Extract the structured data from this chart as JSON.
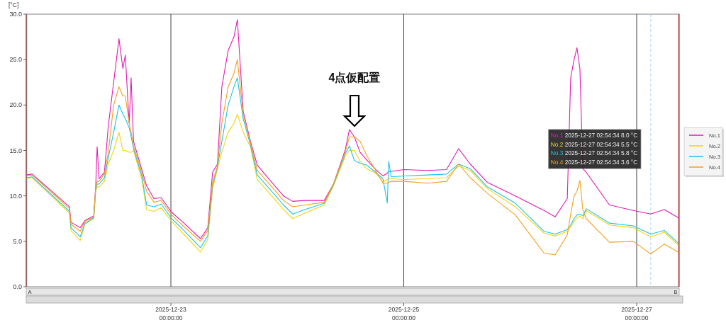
{
  "chart_data": {
    "type": "line",
    "ylabel": "[°C]",
    "xlim": [
      "2025-12-21T18:11",
      "2025-12-27T08:46"
    ],
    "xticks": [
      {
        "value": "2025-12-23",
        "label": "2025-12-23 00:00:00"
      },
      {
        "value": "2025-12-25",
        "label": "2025-12-25 00:00:00"
      },
      {
        "value": "2025-12-27",
        "label": "2025-12-27 00:00:00"
      }
    ],
    "ylim": [
      0,
      30
    ],
    "yticks": [
      {
        "value": 0,
        "label": "0.0"
      },
      {
        "value": 5,
        "label": "5.0"
      },
      {
        "value": 10,
        "label": "10.0"
      },
      {
        "value": 15,
        "label": "15.0"
      },
      {
        "value": 20,
        "label": "20.0"
      },
      {
        "value": 25,
        "label": "25.0"
      },
      {
        "value": 30,
        "label": "30.0"
      }
    ],
    "grid": "x",
    "legend": "right",
    "marker": "none",
    "line_style": "solid",
    "x": [
      "2025-12-21T18:11",
      "2025-12-21T19:24",
      "2025-12-22T03:06",
      "2025-12-22T03:24",
      "2025-12-22T05:18",
      "2025-12-22T06:18",
      "2025-12-22T08:06",
      "2025-12-22T08:30",
      "2025-12-22T08:48",
      "2025-12-22T09:12",
      "2025-12-22T10:18",
      "2025-12-22T11:06",
      "2025-12-22T12:12",
      "2025-12-22T13:18",
      "2025-12-22T14:06",
      "2025-12-22T14:36",
      "2025-12-22T15:24",
      "2025-12-22T15:48",
      "2025-12-22T16:18",
      "2025-12-22T18:00",
      "2025-12-22T19:00",
      "2025-12-22T20:30",
      "2025-12-22T22:00",
      "2025-12-23T00:09",
      "2025-12-23T02:18",
      "2025-12-23T06:06",
      "2025-12-23T07:36",
      "2025-12-23T08:36",
      "2025-12-23T09:36",
      "2025-12-23T10:30",
      "2025-12-23T11:48",
      "2025-12-23T13:00",
      "2025-12-23T13:42",
      "2025-12-23T14:54",
      "2025-12-23T16:24",
      "2025-12-23T17:48",
      "2025-12-23T20:18",
      "2025-12-23T23:12",
      "2025-12-24T01:06",
      "2025-12-24T03:36",
      "2025-12-24T07:36",
      "2025-12-24T09:30",
      "2025-12-24T11:54",
      "2025-12-24T12:48",
      "2025-12-24T13:48",
      "2025-12-24T15:00",
      "2025-12-24T16:18",
      "2025-12-24T18:12",
      "2025-12-24T19:42",
      "2025-12-24T20:36",
      "2025-12-24T20:54",
      "2025-12-24T21:24",
      "2025-12-25T00:06",
      "2025-12-25T04:54",
      "2025-12-25T08:48",
      "2025-12-25T11:18",
      "2025-12-25T13:42",
      "2025-12-25T17:12",
      "2025-12-25T23:00",
      "2025-12-26T04:54",
      "2025-12-26T07:12",
      "2025-12-26T09:42",
      "2025-12-26T10:24",
      "2025-12-26T11:06",
      "2025-12-26T11:42",
      "2025-12-26T12:18",
      "2025-12-26T12:54",
      "2025-12-26T13:36",
      "2025-12-26T18:24",
      "2025-12-26T23:18",
      "2025-12-27T02:54",
      "2025-12-27T05:42",
      "2025-12-27T08:36"
    ],
    "series": [
      {
        "name": "No.1",
        "color": "#e619b4",
        "values": [
          12.3,
          12.4,
          8.8,
          7.1,
          6.5,
          7.3,
          7.8,
          11.0,
          15.4,
          11.9,
          12.6,
          17.7,
          22.5,
          27.3,
          24.0,
          25.5,
          18.0,
          23.0,
          16.0,
          12.9,
          11.1,
          9.7,
          9.8,
          8.2,
          7.2,
          5.3,
          6.5,
          12.6,
          13.5,
          22.0,
          26.0,
          27.5,
          29.4,
          19.3,
          16.0,
          13.4,
          11.8,
          10.0,
          9.4,
          9.5,
          9.5,
          11.3,
          15.0,
          17.3,
          16.5,
          14.8,
          14.0,
          12.9,
          12.2,
          12.5,
          12.7,
          12.7,
          12.9,
          12.8,
          12.9,
          15.2,
          13.5,
          11.5,
          10.0,
          8.4,
          7.7,
          9.7,
          23.0,
          25.0,
          26.3,
          24.0,
          13.0,
          12.6,
          9.0,
          8.4,
          8.0,
          8.5,
          7.6
        ]
      },
      {
        "name": "No.2",
        "color": "#f2d40c",
        "values": [
          11.9,
          12.0,
          8.1,
          6.2,
          5.1,
          6.9,
          7.5,
          10.5,
          11.0,
          11.0,
          11.6,
          13.5,
          15.0,
          17.0,
          15.0,
          15.0,
          14.8,
          14.8,
          15.0,
          11.8,
          8.5,
          8.3,
          8.7,
          7.2,
          6.0,
          3.8,
          5.2,
          10.8,
          13.0,
          14.8,
          17.0,
          18.0,
          19.0,
          17.0,
          15.4,
          11.8,
          10.3,
          8.5,
          7.5,
          8.1,
          9.0,
          11.1,
          14.3,
          15.0,
          15.0,
          13.8,
          13.0,
          12.5,
          11.6,
          11.8,
          11.9,
          11.9,
          11.8,
          11.9,
          12.0,
          13.3,
          12.8,
          10.8,
          8.8,
          5.9,
          5.6,
          6.1,
          6.6,
          7.2,
          7.6,
          7.8,
          7.5,
          8.4,
          6.8,
          6.5,
          5.5,
          6.0,
          4.6
        ]
      },
      {
        "name": "No.3",
        "color": "#1ec3e6",
        "values": [
          12.0,
          12.1,
          8.3,
          6.5,
          5.5,
          7.0,
          7.6,
          10.7,
          11.3,
          11.3,
          12.0,
          14.2,
          17.0,
          20.0,
          19.0,
          18.5,
          17.5,
          16.5,
          15.2,
          12.2,
          9.0,
          8.8,
          9.1,
          7.5,
          6.4,
          4.3,
          5.6,
          11.2,
          13.2,
          16.0,
          20.0,
          22.0,
          23.0,
          18.5,
          15.6,
          12.3,
          10.8,
          9.0,
          8.0,
          8.5,
          9.2,
          11.2,
          14.6,
          15.5,
          13.9,
          13.6,
          13.4,
          12.6,
          11.9,
          9.2,
          13.8,
          12.1,
          12.2,
          12.3,
          12.4,
          13.5,
          13.0,
          11.0,
          9.2,
          6.1,
          5.8,
          6.3,
          6.8,
          7.5,
          7.9,
          8.0,
          7.8,
          8.6,
          7.0,
          6.7,
          5.8,
          6.2,
          4.8
        ]
      },
      {
        "name": "No.4",
        "color": "#f5a01e",
        "values": [
          12.2,
          12.3,
          8.6,
          6.9,
          6.1,
          7.2,
          7.7,
          10.9,
          11.6,
          11.6,
          12.4,
          14.8,
          20.0,
          22.0,
          21.0,
          21.0,
          18.0,
          17.0,
          15.5,
          12.6,
          10.5,
          9.3,
          9.5,
          7.9,
          6.8,
          5.0,
          6.2,
          11.5,
          13.3,
          18.0,
          22.0,
          23.5,
          25.0,
          19.0,
          15.8,
          12.8,
          11.3,
          9.5,
          8.8,
          9.0,
          9.3,
          11.3,
          14.8,
          16.5,
          16.5,
          16.0,
          14.5,
          12.8,
          11.4,
          11.4,
          11.5,
          11.6,
          11.6,
          11.4,
          11.6,
          13.5,
          12.0,
          10.3,
          7.9,
          3.7,
          3.5,
          5.7,
          8.0,
          10.0,
          10.5,
          11.7,
          8.5,
          7.5,
          4.9,
          5.0,
          3.6,
          4.7,
          3.8
        ]
      }
    ],
    "ref_lines": [
      {
        "axis": "x",
        "value": "2025-12-27T02:54",
        "color": "#b4d2f0",
        "line_style": "dashed"
      }
    ],
    "annotations": [
      "4点仮配置",
      "No.1 2025-12-27 02:54:34 8.0 °C",
      "No.2 2025-12-27 02:54:34 5.5 °C",
      "No.3 2025-12-27 02:54:34 5.8 °C",
      "No.4 2025-12-27 02:54:34 3.6 °C",
      "A",
      "B"
    ]
  }
}
